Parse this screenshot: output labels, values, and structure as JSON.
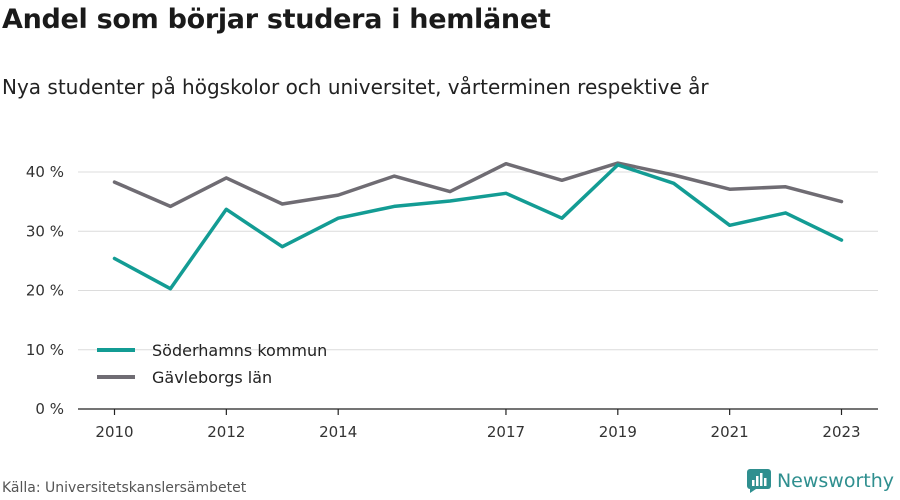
{
  "header": {
    "title": "Andel som börjar studera i hemlänet",
    "subtitle": "Nya studenter på högskolor och universitet, vårterminen respektive år"
  },
  "footer": {
    "source": "Källa: Universitetskanslersämbetet",
    "brand": "Newsworthy"
  },
  "icons": {
    "brand_logo": "newsworthy-logo-icon"
  },
  "chart_data": {
    "type": "line",
    "title": "Andel som börjar studera i hemlänet",
    "subtitle": "Nya studenter på högskolor och universitet, vårterminen respektive år",
    "x": [
      2010,
      2011,
      2012,
      2013,
      2014,
      2015,
      2016,
      2017,
      2018,
      2019,
      2020,
      2021,
      2022,
      2023
    ],
    "x_tick_values": [
      2010,
      2012,
      2014,
      2017,
      2019,
      2021,
      2023
    ],
    "x_tick_labels": [
      "2010",
      "2012",
      "2014",
      "2017",
      "2019",
      "2021",
      "2023"
    ],
    "y_tick_values": [
      0,
      10,
      20,
      30,
      40
    ],
    "y_tick_labels": [
      "0 %",
      "10 %",
      "20 %",
      "30 %",
      "40 %"
    ],
    "ylim": [
      0,
      40
    ],
    "grid": true,
    "legend_position": "bottom-left",
    "series": [
      {
        "name": "Söderhamns kommun",
        "color": "#139c94",
        "values": [
          25.4,
          20.3,
          33.7,
          27.4,
          32.2,
          34.2,
          35.1,
          36.4,
          32.2,
          41.2,
          38.1,
          31.0,
          33.1,
          28.5
        ]
      },
      {
        "name": "Gävleborgs län",
        "color": "#6f6c73",
        "values": [
          38.3,
          34.2,
          39.0,
          34.6,
          36.1,
          39.3,
          36.7,
          41.4,
          38.6,
          41.5,
          39.5,
          37.1,
          37.5,
          35.0
        ]
      }
    ]
  }
}
